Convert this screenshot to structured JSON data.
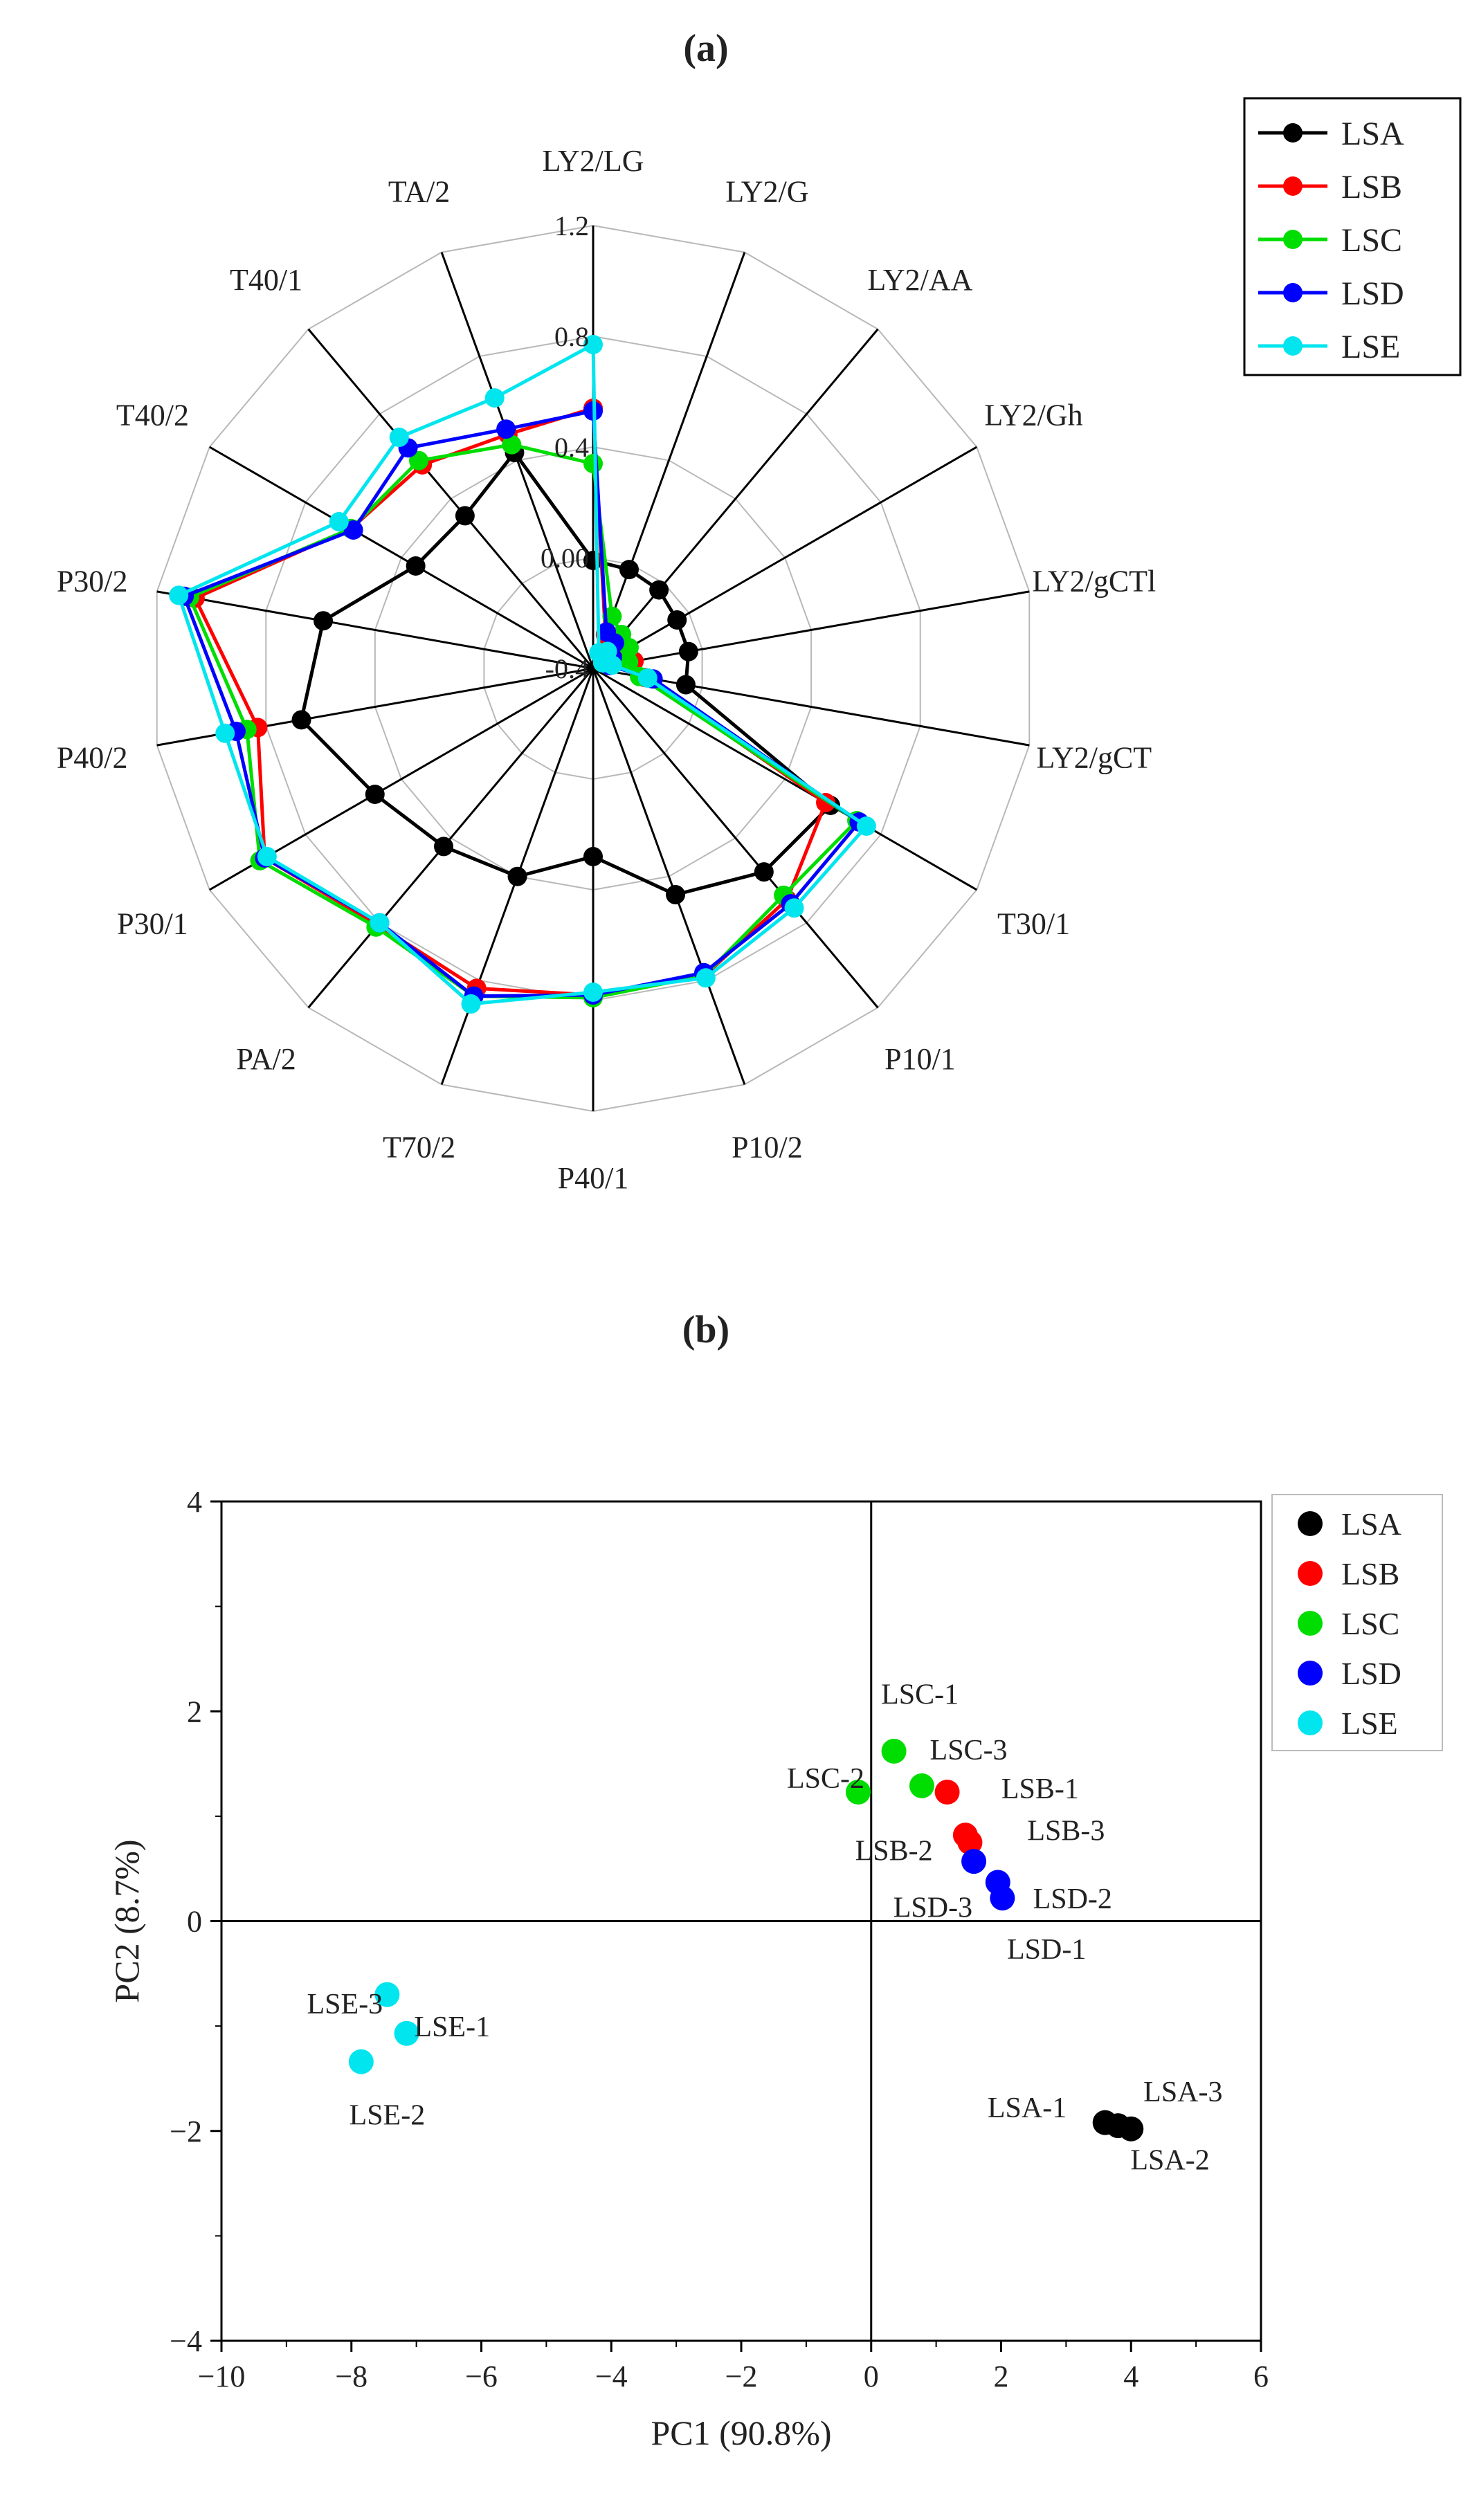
{
  "panels": {
    "a_label": "(a)",
    "b_label": "(b)"
  },
  "colors": {
    "LSA": "#000000",
    "LSB": "#ff0000",
    "LSC": "#00dd00",
    "LSD": "#0000ff",
    "LSE": "#00e5ee"
  },
  "chart_data": [
    {
      "type": "radar",
      "panel": "(a)",
      "axes": [
        "LY2/LG",
        "LY2/G",
        "LY2/AA",
        "LY2/Gh",
        "LY2/gCTl",
        "LY2/gCT",
        "T30/1",
        "P10/1",
        "P10/2",
        "P40/1",
        "T70/2",
        "PA/2",
        "P30/1",
        "P40/2",
        "P30/2",
        "T40/2",
        "T40/1",
        "TA/2"
      ],
      "r_range": [
        -0.4,
        1.2
      ],
      "r_ticks": [
        -0.4,
        0.0,
        0.4,
        0.8,
        1.2
      ],
      "r_tick_labels": [
        "-0.4",
        "0.00",
        "0.4",
        "0.8",
        "1.2"
      ],
      "legend": [
        "LSA",
        "LSB",
        "LSC",
        "LSD",
        "LSE"
      ],
      "series": [
        {
          "name": "LSA",
          "values": [
            -0.01,
            -0.02,
            -0.03,
            -0.05,
            -0.05,
            -0.06,
            0.59,
            0.56,
            0.47,
            0.28,
            0.4,
            0.44,
            0.51,
            0.67,
            0.59,
            0.34,
            0.32,
            0.43
          ]
        },
        {
          "name": "LSB",
          "values": [
            0.54,
            -0.27,
            -0.26,
            -0.27,
            -0.25,
            -0.21,
            0.57,
            0.69,
            0.78,
            0.78,
            0.83,
            0.81,
            0.97,
            0.83,
            1.06,
            0.61,
            0.56,
            0.5
          ]
        },
        {
          "name": "LSC",
          "values": [
            0.34,
            -0.2,
            -0.24,
            -0.25,
            -0.27,
            -0.23,
            0.7,
            0.67,
            0.78,
            0.79,
            0.86,
            0.82,
            0.99,
            0.87,
            1.08,
            0.61,
            0.58,
            0.46
          ]
        },
        {
          "name": "LSD",
          "values": [
            0.53,
            -0.26,
            -0.28,
            -0.32,
            -0.34,
            -0.18,
            0.71,
            0.71,
            0.77,
            0.78,
            0.86,
            0.8,
            0.97,
            0.91,
            1.1,
            0.6,
            0.64,
            0.52
          ]
        },
        {
          "name": "LSE",
          "values": [
            0.77,
            -0.34,
            -0.32,
            -0.36,
            -0.33,
            -0.2,
            0.74,
            0.73,
            0.79,
            0.77,
            0.89,
            0.8,
            0.96,
            0.95,
            1.12,
            0.66,
            0.69,
            0.64
          ]
        }
      ]
    },
    {
      "type": "scatter",
      "panel": "(b)",
      "xlabel": "PC1 (90.8%)",
      "ylabel": "PC2 (8.7%)",
      "xlim": [
        -10,
        6
      ],
      "ylim": [
        -4,
        4
      ],
      "xticks": [
        -10,
        -8,
        -6,
        -4,
        -2,
        0,
        2,
        4,
        6
      ],
      "yticks": [
        -4,
        -2,
        0,
        2,
        4
      ],
      "legend": [
        "LSA",
        "LSB",
        "LSC",
        "LSD",
        "LSE"
      ],
      "points": [
        {
          "group": "LSA",
          "x": 3.6,
          "y": -1.92
        },
        {
          "group": "LSA",
          "x": 3.8,
          "y": -1.95
        },
        {
          "group": "LSA",
          "x": 4.0,
          "y": -1.98
        },
        {
          "group": "LSB",
          "x": 1.17,
          "y": 1.23
        },
        {
          "group": "LSB",
          "x": 1.45,
          "y": 0.82
        },
        {
          "group": "LSB",
          "x": 1.52,
          "y": 0.75
        },
        {
          "group": "LSC",
          "x": 0.35,
          "y": 1.62
        },
        {
          "group": "LSC",
          "x": -0.2,
          "y": 1.23
        },
        {
          "group": "LSC",
          "x": 0.78,
          "y": 1.29
        },
        {
          "group": "LSD",
          "x": 2.02,
          "y": 0.22
        },
        {
          "group": "LSD",
          "x": 1.95,
          "y": 0.37
        },
        {
          "group": "LSD",
          "x": 1.58,
          "y": 0.57
        },
        {
          "group": "LSE",
          "x": -7.15,
          "y": -1.07
        },
        {
          "group": "LSE",
          "x": -7.85,
          "y": -1.34
        },
        {
          "group": "LSE",
          "x": -7.45,
          "y": -0.7
        }
      ],
      "labels": [
        {
          "text": "LSA-1",
          "x": 2.4,
          "y": -1.77
        },
        {
          "text": "LSA-2",
          "x": 4.6,
          "y": -2.27
        },
        {
          "text": "LSA-3",
          "x": 4.8,
          "y": -1.62
        },
        {
          "text": "LSB-1",
          "x": 2.6,
          "y": 1.27
        },
        {
          "text": "LSB-2",
          "x": 0.35,
          "y": 0.68
        },
        {
          "text": "LSB-3",
          "x": 3.0,
          "y": 0.87
        },
        {
          "text": "LSC-1",
          "x": 0.75,
          "y": 2.17
        },
        {
          "text": "LSC-2",
          "x": -0.7,
          "y": 1.37
        },
        {
          "text": "LSC-3",
          "x": 1.5,
          "y": 1.64
        },
        {
          "text": "LSD-1",
          "x": 2.7,
          "y": -0.26
        },
        {
          "text": "LSD-2",
          "x": 3.1,
          "y": 0.22
        },
        {
          "text": "LSD-3",
          "x": 0.95,
          "y": 0.14
        },
        {
          "text": "LSE-1",
          "x": -6.45,
          "y": -1.0
        },
        {
          "text": "LSE-2",
          "x": -7.45,
          "y": -1.84
        },
        {
          "text": "LSE-3",
          "x": -8.1,
          "y": -0.78
        }
      ]
    }
  ]
}
